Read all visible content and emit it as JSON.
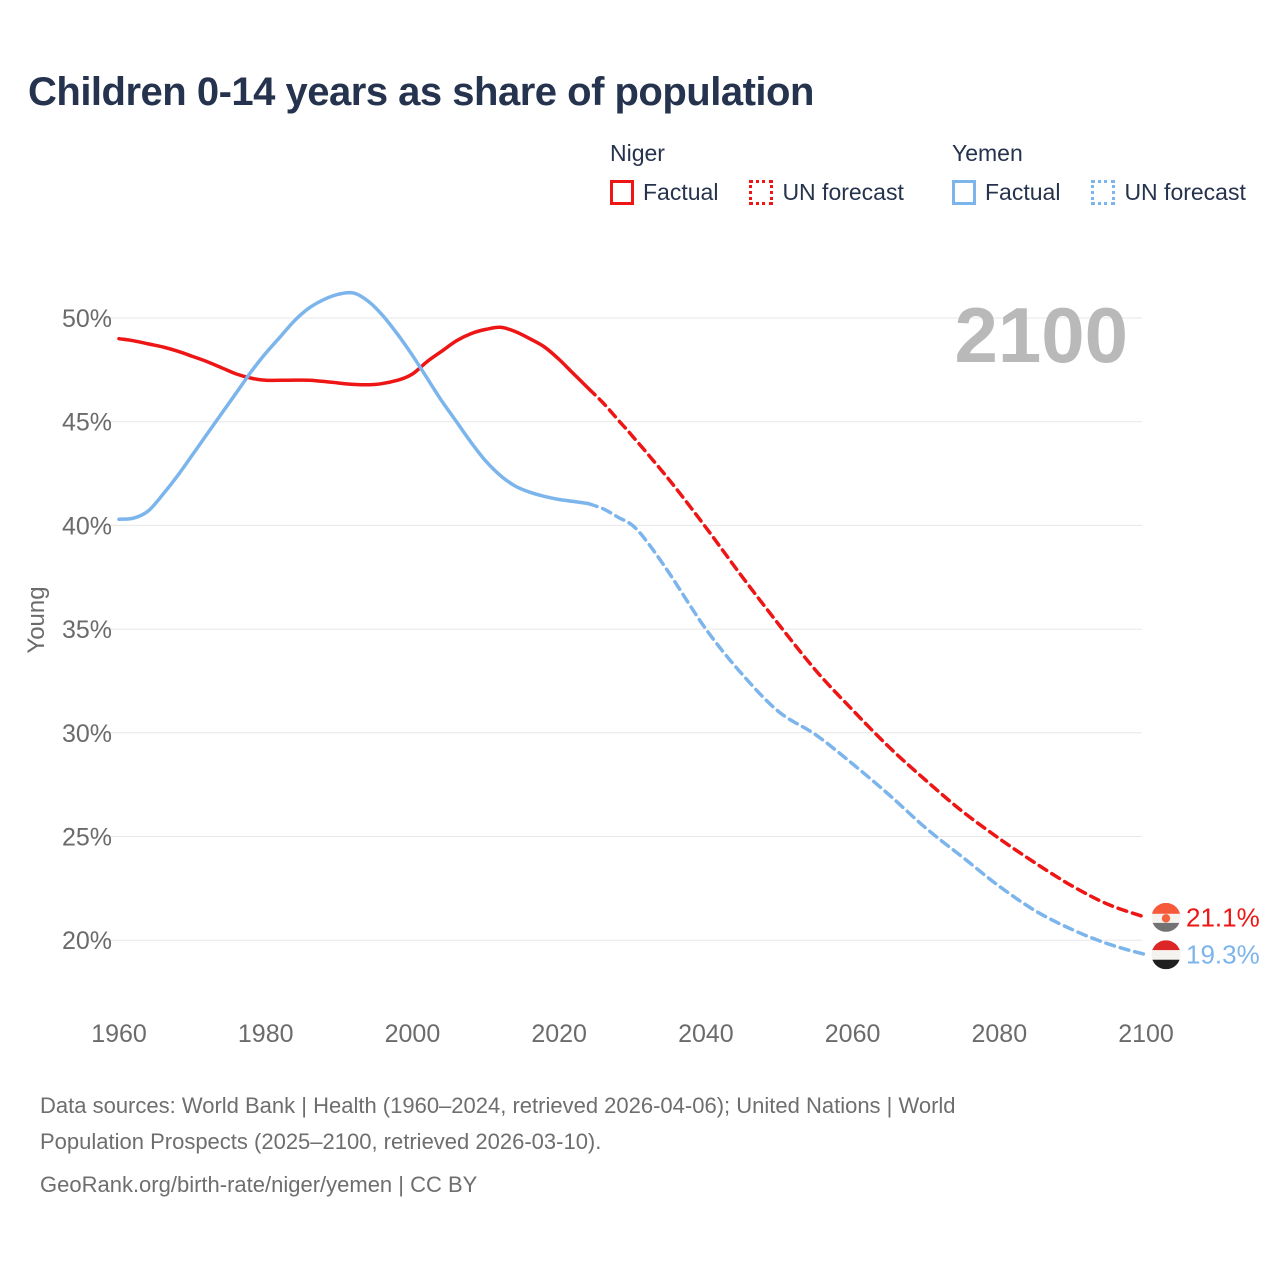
{
  "title": "Children 0-14 years as share of population",
  "watermark": "2100",
  "legend": {
    "niger": {
      "country": "Niger",
      "factual": "Factual",
      "forecast": "UN forecast"
    },
    "yemen": {
      "country": "Yemen",
      "factual": "Factual",
      "forecast": "UN forecast"
    }
  },
  "footer": {
    "line1": "Data sources: World Bank | Health (1960–2024, retrieved 2026-04-06); United Nations | World",
    "line2": "Population Prospects (2025–2100, retrieved 2026-03-10).",
    "line3": "GeoRank.org/birth-rate/niger/yemen | CC BY"
  },
  "colors": {
    "niger_line": "#ee1515",
    "yemen_line": "#7cb5ec",
    "grid": "#e7e7e7",
    "tick_text": "#6b6b6b",
    "watermark": "#b9b9b9",
    "title_text": "#25334e"
  },
  "chart_data": {
    "type": "line",
    "title": "Children 0-14 years as share of population",
    "xlabel": "",
    "ylabel": "Young",
    "grid": true,
    "legend_position": "top-right",
    "xlim": [
      1956,
      2112
    ],
    "ylim": [
      18.5,
      53
    ],
    "xticks": [
      1960,
      1980,
      2000,
      2020,
      2040,
      2060,
      2080,
      2100
    ],
    "yticks": [
      {
        "value": 20,
        "label": "20%"
      },
      {
        "value": 25,
        "label": "25%"
      },
      {
        "value": 30,
        "label": "30%"
      },
      {
        "value": 35,
        "label": "35%"
      },
      {
        "value": 40,
        "label": "40%"
      },
      {
        "value": 45,
        "label": "45%"
      },
      {
        "value": 50,
        "label": "50%"
      }
    ],
    "series": [
      {
        "name": "Niger Factual",
        "color": "#ee1515",
        "style": "solid",
        "points": [
          [
            1960,
            49.0
          ],
          [
            1962,
            48.9
          ],
          [
            1964,
            48.75
          ],
          [
            1966,
            48.6
          ],
          [
            1968,
            48.4
          ],
          [
            1970,
            48.15
          ],
          [
            1972,
            47.9
          ],
          [
            1974,
            47.6
          ],
          [
            1976,
            47.3
          ],
          [
            1978,
            47.1
          ],
          [
            1980,
            47.0
          ],
          [
            1983,
            47.0
          ],
          [
            1986,
            47.0
          ],
          [
            1989,
            46.9
          ],
          [
            1992,
            46.8
          ],
          [
            1995,
            46.8
          ],
          [
            1998,
            47.0
          ],
          [
            2000,
            47.3
          ],
          [
            2002,
            47.9
          ],
          [
            2004,
            48.4
          ],
          [
            2006,
            48.9
          ],
          [
            2008,
            49.25
          ],
          [
            2010,
            49.45
          ],
          [
            2012,
            49.55
          ],
          [
            2014,
            49.35
          ],
          [
            2016,
            49.0
          ],
          [
            2018,
            48.6
          ],
          [
            2020,
            48.0
          ],
          [
            2022,
            47.3
          ],
          [
            2024,
            46.6
          ]
        ]
      },
      {
        "name": "Niger UN forecast",
        "color": "#ee1515",
        "style": "dashed",
        "points": [
          [
            2024,
            46.6
          ],
          [
            2026,
            45.9
          ],
          [
            2028,
            45.1
          ],
          [
            2030,
            44.3
          ],
          [
            2035,
            42.2
          ],
          [
            2040,
            39.9
          ],
          [
            2045,
            37.5
          ],
          [
            2050,
            35.2
          ],
          [
            2055,
            33.0
          ],
          [
            2060,
            31.1
          ],
          [
            2065,
            29.3
          ],
          [
            2070,
            27.7
          ],
          [
            2075,
            26.2
          ],
          [
            2080,
            24.9
          ],
          [
            2085,
            23.7
          ],
          [
            2090,
            22.6
          ],
          [
            2095,
            21.7
          ],
          [
            2100,
            21.1
          ]
        ]
      },
      {
        "name": "Yemen Factual",
        "color": "#7cb5ec",
        "style": "solid",
        "points": [
          [
            1960,
            40.3
          ],
          [
            1962,
            40.35
          ],
          [
            1964,
            40.7
          ],
          [
            1966,
            41.5
          ],
          [
            1968,
            42.4
          ],
          [
            1970,
            43.4
          ],
          [
            1972,
            44.4
          ],
          [
            1974,
            45.4
          ],
          [
            1976,
            46.4
          ],
          [
            1978,
            47.4
          ],
          [
            1980,
            48.3
          ],
          [
            1982,
            49.1
          ],
          [
            1984,
            49.9
          ],
          [
            1986,
            50.5
          ],
          [
            1988,
            50.9
          ],
          [
            1990,
            51.15
          ],
          [
            1992,
            51.2
          ],
          [
            1994,
            50.8
          ],
          [
            1996,
            50.1
          ],
          [
            1998,
            49.2
          ],
          [
            2000,
            48.2
          ],
          [
            2002,
            47.1
          ],
          [
            2004,
            46.0
          ],
          [
            2006,
            45.0
          ],
          [
            2008,
            44.0
          ],
          [
            2010,
            43.1
          ],
          [
            2012,
            42.4
          ],
          [
            2014,
            41.9
          ],
          [
            2016,
            41.6
          ],
          [
            2018,
            41.4
          ],
          [
            2020,
            41.25
          ],
          [
            2022,
            41.15
          ],
          [
            2024,
            41.05
          ]
        ]
      },
      {
        "name": "Yemen UN forecast",
        "color": "#7cb5ec",
        "style": "dashed",
        "points": [
          [
            2024,
            41.05
          ],
          [
            2026,
            40.8
          ],
          [
            2028,
            40.4
          ],
          [
            2030,
            40.0
          ],
          [
            2032,
            39.2
          ],
          [
            2035,
            37.7
          ],
          [
            2040,
            35.0
          ],
          [
            2045,
            32.8
          ],
          [
            2050,
            31.0
          ],
          [
            2055,
            29.9
          ],
          [
            2060,
            28.5
          ],
          [
            2065,
            27.0
          ],
          [
            2070,
            25.4
          ],
          [
            2075,
            24.0
          ],
          [
            2080,
            22.6
          ],
          [
            2085,
            21.4
          ],
          [
            2090,
            20.5
          ],
          [
            2095,
            19.8
          ],
          [
            2100,
            19.3
          ]
        ]
      }
    ],
    "end_labels": [
      {
        "series": "Niger",
        "value": 21.1,
        "label": "21.1%",
        "color": "#ee1515",
        "flag": "niger"
      },
      {
        "series": "Yemen",
        "value": 19.3,
        "label": "19.3%",
        "color": "#7cb5ec",
        "flag": "yemen"
      }
    ],
    "flags": {
      "niger": {
        "top": "#f75a3a",
        "middle": "#f5f3ef",
        "dot": "#f4623e",
        "bottom": "#737373"
      },
      "yemen": {
        "top": "#dd2626",
        "middle": "#f5f3ef",
        "bottom": "#1f1f1f"
      }
    }
  }
}
